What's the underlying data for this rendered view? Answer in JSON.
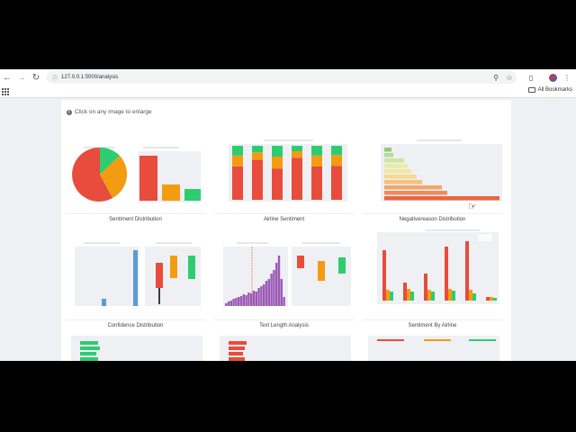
{
  "browser": {
    "url": "127.0.0.1:5000/analysis",
    "bookmarks_label": "All Bookmarks"
  },
  "page": {
    "hint": "Click on any image to enlarge"
  },
  "cards": [
    {
      "id": "sentiment-distribution",
      "caption": "Sentiment Distribution"
    },
    {
      "id": "airline-sentiment",
      "caption": "Airline Sentiment"
    },
    {
      "id": "negativereason-distribution",
      "caption": "Negativereason Distribution"
    },
    {
      "id": "confidence-distribution",
      "caption": "Confidence Distribution"
    },
    {
      "id": "text-length-analysis",
      "caption": "Text Length Analysis"
    },
    {
      "id": "sentiment-by-airline",
      "caption": "Sentiment By Airline"
    }
  ],
  "colors": {
    "negative": "#e74c3c",
    "neutral": "#f39c12",
    "positive": "#2ecc71",
    "purple": "#9b59b6",
    "blue": "#5d9bd1"
  }
}
